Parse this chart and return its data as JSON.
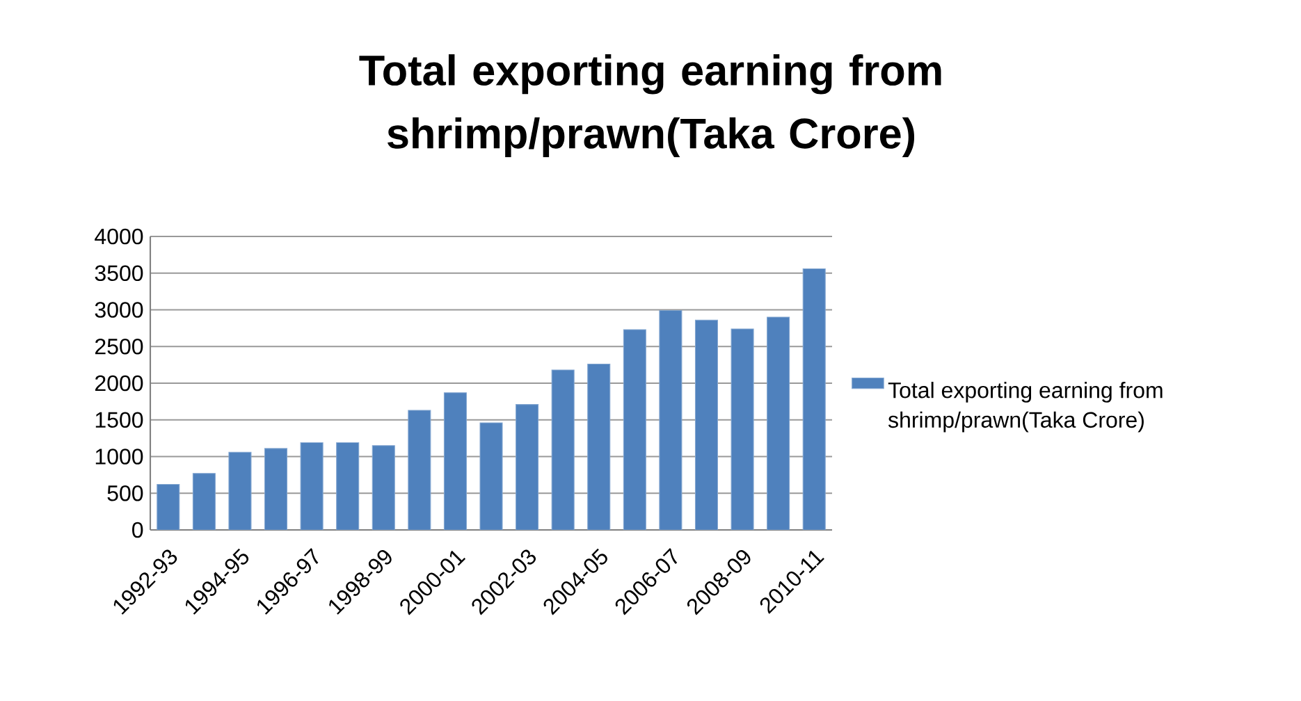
{
  "chart_data": {
    "type": "bar",
    "title": "Total exporting earning from shrimp/prawn(Taka Crore)",
    "categories": [
      "1992-93",
      null,
      "1994-95",
      null,
      "1996-97",
      null,
      "1998-99",
      null,
      "2000-01",
      null,
      "2002-03",
      null,
      "2004-05",
      null,
      "2006-07",
      null,
      "2008-09",
      null,
      "2010-11"
    ],
    "series": [
      {
        "name": "Total exporting earning from shrimp/prawn(Taka Crore)",
        "color": "#4f81bd",
        "values": [
          620,
          770,
          1060,
          1110,
          1190,
          1190,
          1150,
          1630,
          1870,
          1460,
          1710,
          2180,
          2260,
          2730,
          2990,
          2860,
          2740,
          2900,
          3560
        ]
      }
    ],
    "ylim": [
      0,
      4000
    ],
    "yticks": [
      0,
      500,
      1000,
      1500,
      2000,
      2500,
      3000,
      3500,
      4000
    ],
    "grid": "y",
    "legend": "right"
  }
}
